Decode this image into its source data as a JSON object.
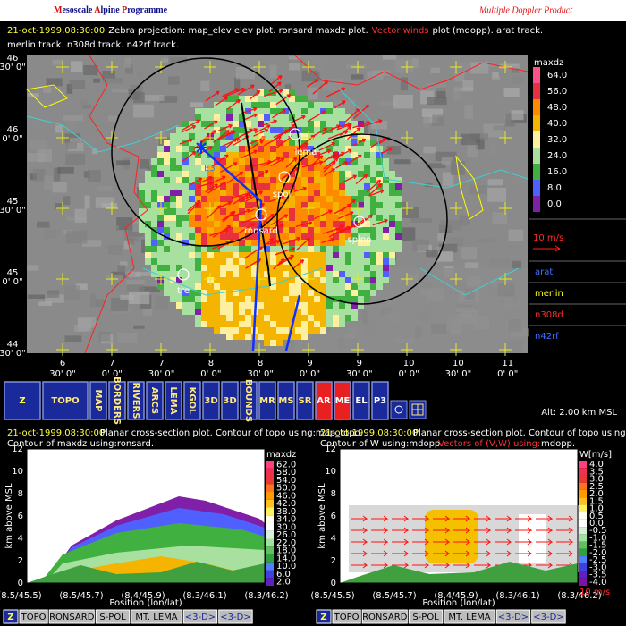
{
  "header": {
    "title": "Mesoscale Alpine Programme",
    "product": "Multiple Doppler Product"
  },
  "caption": {
    "timestamp": "21-oct-1999,08:30:00",
    "line1": "Zebra projection: map_elev elev plot.  ronsard maxdz plot.",
    "vector": "Vector winds",
    "line1_end": "plot (mdopp).  arat track.",
    "line2": "merlin track.  n308d track.  n42rf track."
  },
  "map": {
    "lat_labels": [
      {
        "deg": "46",
        "min": "30' 0\""
      },
      {
        "deg": "46",
        "min": "0' 0\""
      },
      {
        "deg": "45",
        "min": "30' 0\""
      },
      {
        "deg": "45",
        "min": "0' 0\""
      },
      {
        "deg": "44",
        "min": "30' 0\""
      }
    ],
    "lon_labels": [
      {
        "deg": "6",
        "min": "30' 0\""
      },
      {
        "deg": "7",
        "min": "0' 0\""
      },
      {
        "deg": "7",
        "min": "30' 0\""
      },
      {
        "deg": "8",
        "min": "0' 0\""
      },
      {
        "deg": "8",
        "min": "30' 0\""
      },
      {
        "deg": "9",
        "min": "0' 0\""
      },
      {
        "deg": "9",
        "min": "30' 0\""
      },
      {
        "deg": "10",
        "min": "0' 0\""
      },
      {
        "deg": "10",
        "min": "30' 0\""
      },
      {
        "deg": "11",
        "min": "0' 0\""
      }
    ],
    "stations": [
      "lema",
      "spol",
      "ronsard",
      "spino",
      "tre"
    ],
    "track_label": "E3"
  },
  "legend": {
    "field": "maxdz",
    "scale": [
      "64.0",
      "56.0",
      "48.0",
      "40.0",
      "32.0",
      "24.0",
      "16.0",
      "8.0",
      "0.0"
    ],
    "vector_scale": "10 m/s",
    "tracks": [
      "arat",
      "merlin",
      "n308d",
      "n42rf"
    ]
  },
  "toolbar": {
    "buttons": [
      "Z",
      "TOPO",
      "MAP",
      "BORDERS",
      "RIVERS",
      "ARCS",
      "LEMA",
      "KGOL",
      "3D",
      "3D",
      "BOUNDS",
      "MR",
      "MS",
      "SR",
      "AR",
      "ME",
      "EL",
      "P3"
    ],
    "altitude": "Alt: 2.00 km MSL"
  },
  "panels": [
    {
      "timestamp": "21-oct-1999,08:30:00",
      "line1": "Planar cross-section plot.  Contour of topo using:map_topo.",
      "line2": "Contour of maxdz using:ronsard.",
      "line2_red": null,
      "line2_end": null,
      "y_label": "km above MSL",
      "yticks": [
        "0",
        "2",
        "4",
        "6",
        "8",
        "10",
        "12"
      ],
      "x_labels": [
        "(8.5/45.5)",
        "(8.5/45.7)",
        "(8.4/45.9)",
        "(8.3/46.1)",
        "(8.3/46.2)"
      ],
      "x_title": "Position (lon/lat)",
      "scale_title": "maxdz",
      "scale": [
        "62.0",
        "58.0",
        "54.0",
        "50.0",
        "46.0",
        "42.0",
        "38.0",
        "34.0",
        "30.0",
        "26.0",
        "22.0",
        "18.0",
        "14.0",
        "10.0",
        "6.0",
        "2.0"
      ],
      "vector_scale": null,
      "buttons": [
        "Z",
        "TOPO",
        "RONSARD",
        "S-POL",
        "MT. LEMA",
        "<3-D>",
        "<3-D>"
      ]
    },
    {
      "timestamp": "21-oct-1999,08:30:00",
      "line1": "Planar cross-section plot.  Contour of topo using:map_topo.",
      "line2": "Contour of W using:mdopp.",
      "line2_red": "Vectors of (V,W) using:",
      "line2_end": "mdopp.",
      "y_label": "km above MSL",
      "yticks": [
        "0",
        "2",
        "4",
        "6",
        "8",
        "10",
        "12"
      ],
      "x_labels": [
        "(8.5/45.5)",
        "(8.5/45.7)",
        "(8.4/45.9)",
        "(8.3/46.1)",
        "(8.3/46.2)"
      ],
      "x_title": "Position (lon/lat)",
      "scale_title": "W[m/s]",
      "scale": [
        "4.0",
        "3.5",
        "3.0",
        "2.5",
        "2.0",
        "1.5",
        "1.0",
        "0.5",
        "0.0",
        "-0.5",
        "-1.0",
        "-1.5",
        "-2.0",
        "-2.5",
        "-3.0",
        "-3.5",
        "-4.0"
      ],
      "vector_scale": "10 m/s",
      "buttons": [
        "Z",
        "TOPO",
        "RONSARD",
        "S-POL",
        "MT. LEMA",
        "<3-D>",
        "<3-D>"
      ]
    }
  ]
}
